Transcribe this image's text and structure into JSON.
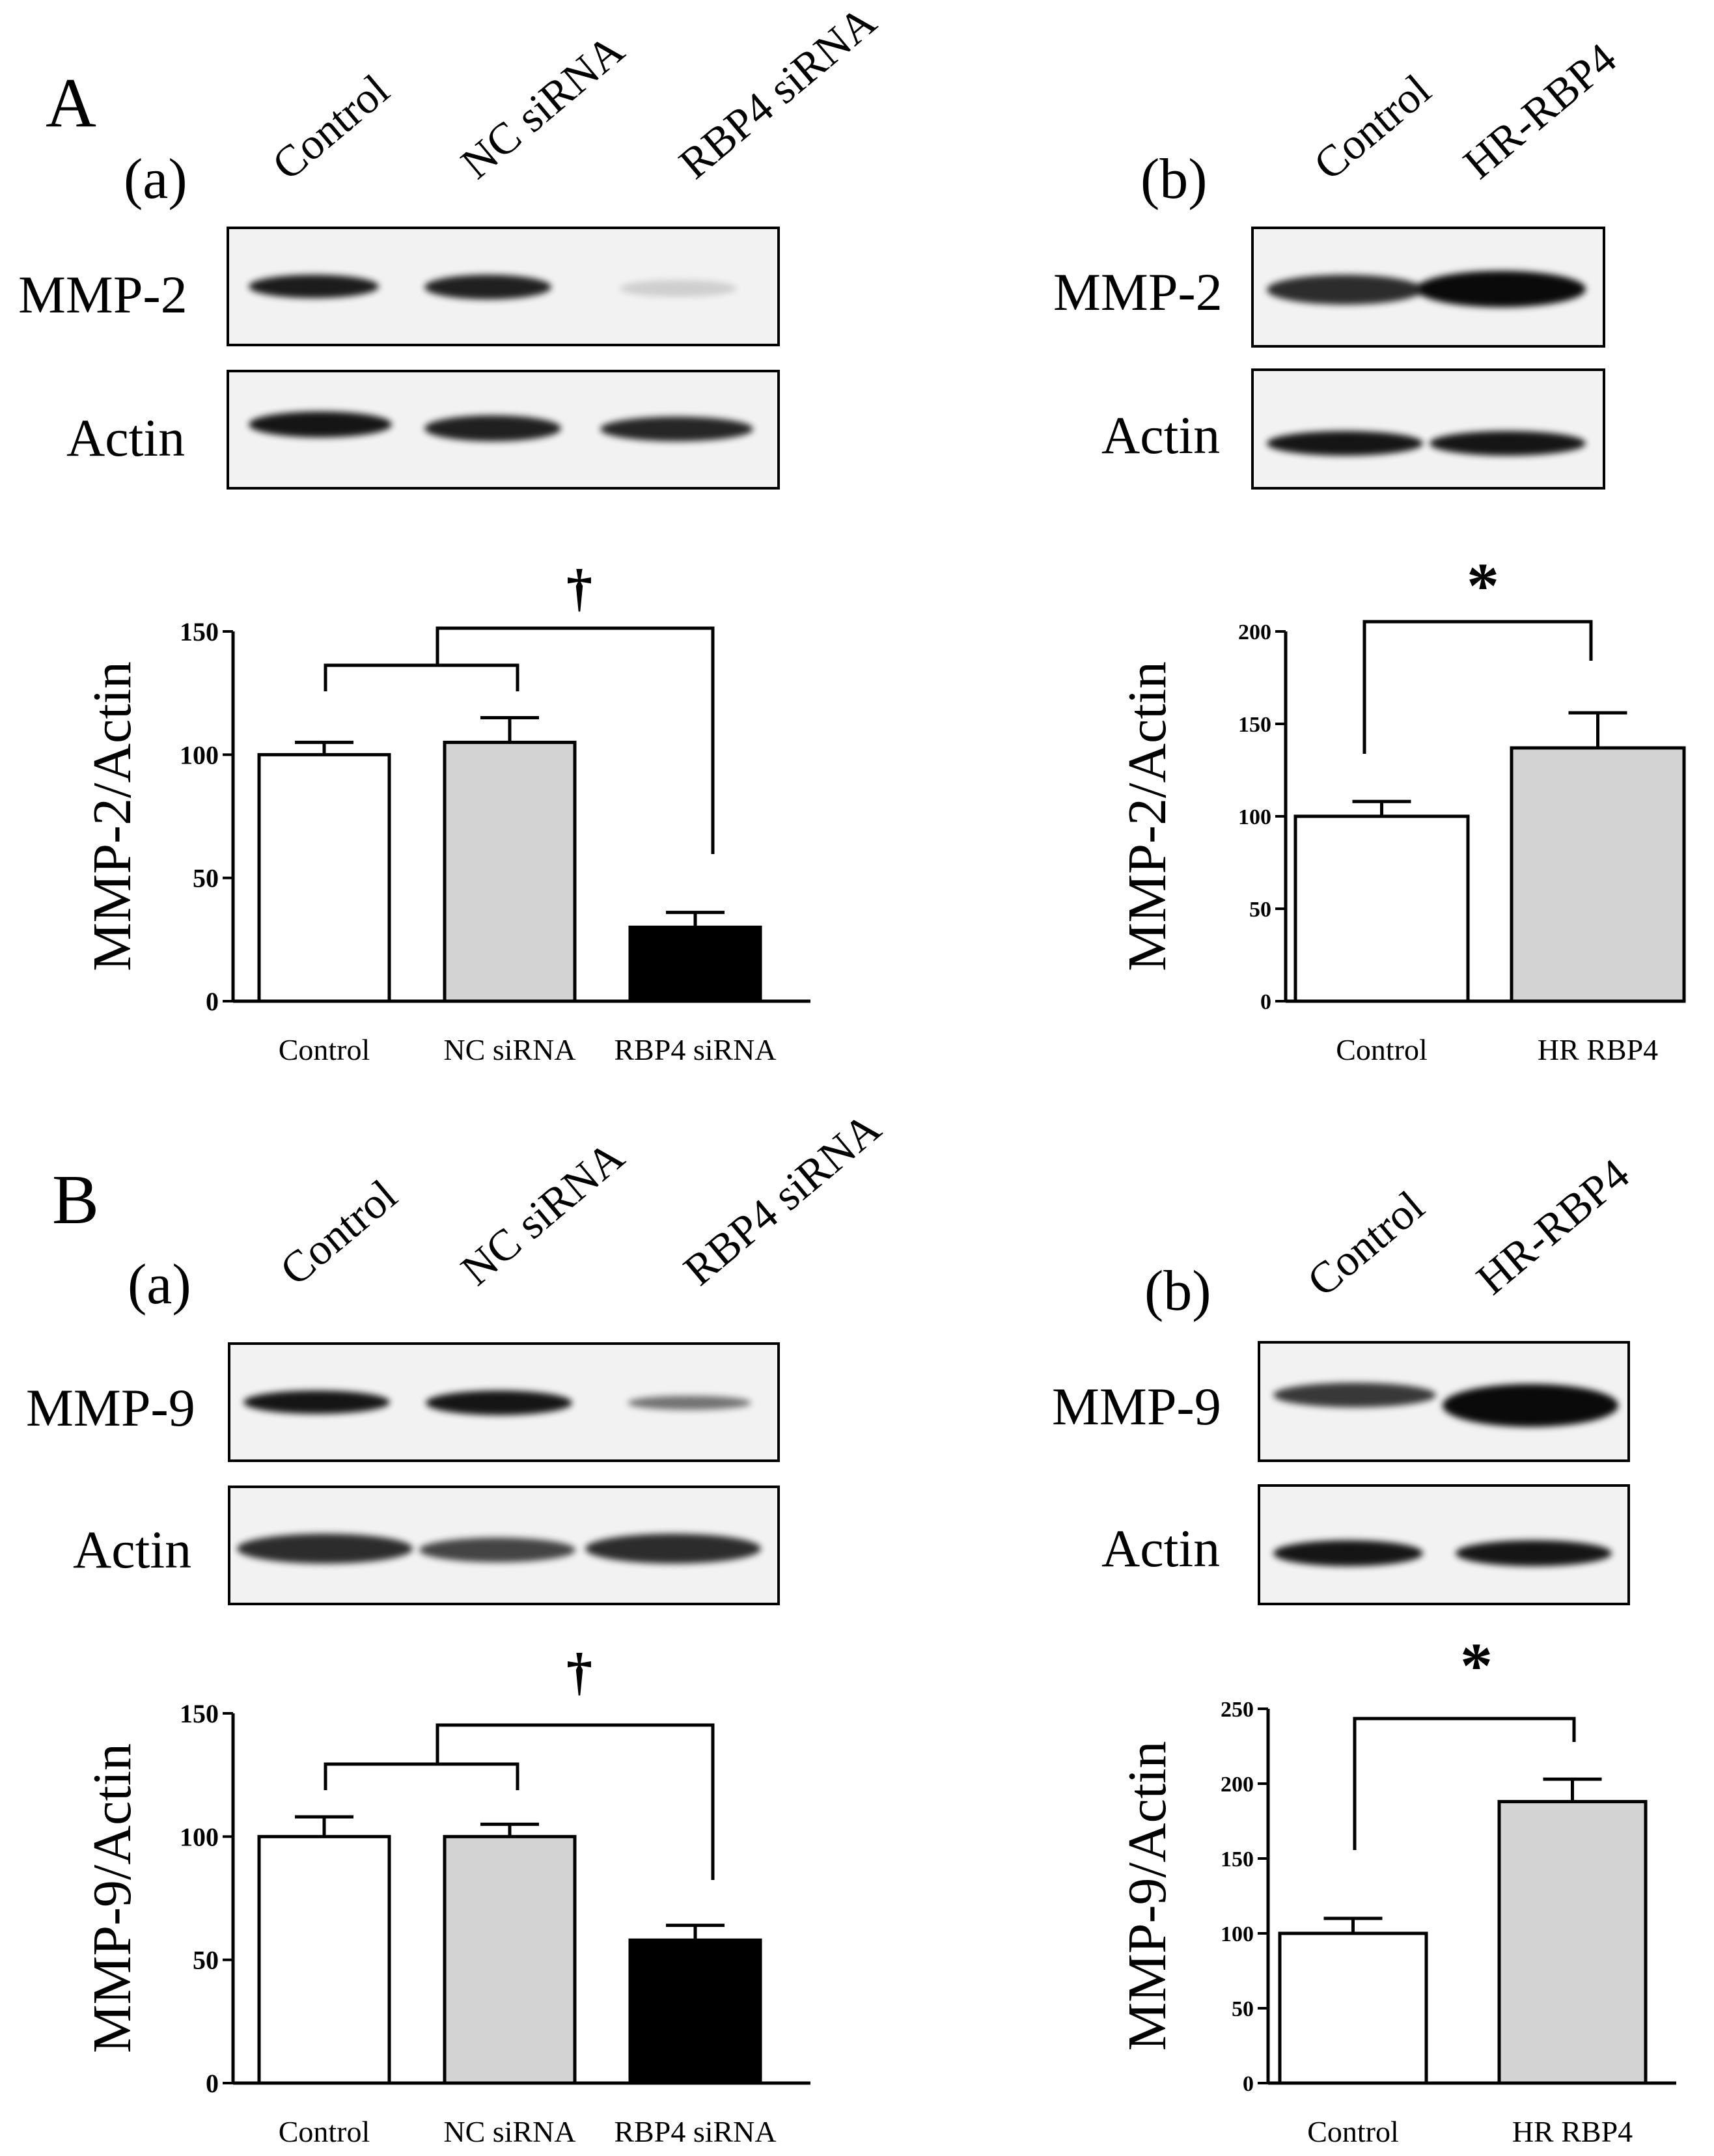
{
  "panels": [
    {
      "letter": "A",
      "sub_panels": [
        {
          "sub_label": "(a)",
          "lanes": [
            "Control",
            "NC siRNA",
            "RBP4 siRNA"
          ],
          "blot_rows": [
            {
              "label": "MMP-2",
              "band_intensity": [
                0.92,
                0.9,
                0.15
              ]
            },
            {
              "label": "Actin",
              "band_intensity": [
                0.95,
                0.9,
                0.88
              ]
            }
          ],
          "significance": "†"
        },
        {
          "sub_label": "(b)",
          "lanes": [
            "Control",
            "HR-RBP4"
          ],
          "blot_rows": [
            {
              "label": "MMP-2",
              "band_intensity": [
                0.85,
                1.0
              ]
            },
            {
              "label": "Actin",
              "band_intensity": [
                0.95,
                0.95
              ]
            }
          ],
          "significance": "*"
        }
      ]
    },
    {
      "letter": "B",
      "sub_panels": [
        {
          "sub_label": "(a)",
          "lanes": [
            "Control",
            "NC siRNA",
            "RBP4 siRNA"
          ],
          "blot_rows": [
            {
              "label": "MMP-9",
              "band_intensity": [
                0.95,
                0.95,
                0.55
              ]
            },
            {
              "label": "Actin",
              "band_intensity": [
                0.85,
                0.75,
                0.85
              ]
            }
          ],
          "significance": "†"
        },
        {
          "sub_label": "(b)",
          "lanes": [
            "Control",
            "HR-RBP4"
          ],
          "blot_rows": [
            {
              "label": "MMP-9",
              "band_intensity": [
                0.8,
                1.0
              ]
            },
            {
              "label": "Actin",
              "band_intensity": [
                0.95,
                0.95
              ]
            }
          ],
          "significance": "*"
        }
      ]
    }
  ],
  "chart_data": [
    {
      "type": "bar",
      "panel": "A(a)",
      "categories": [
        "Control",
        "NC siRNA",
        "RBP4 siRNA"
      ],
      "values": [
        100,
        105,
        30
      ],
      "errors": [
        5,
        10,
        6
      ],
      "bar_colors": [
        "#ffffff",
        "#d3d3d3",
        "#000000"
      ],
      "ylabel": "MMP-2/Actin",
      "ylim": [
        0,
        150
      ],
      "yticks": [
        0,
        50,
        100,
        150
      ],
      "significance": "†"
    },
    {
      "type": "bar",
      "panel": "A(b)",
      "categories": [
        "Control",
        "HR RBP4"
      ],
      "values": [
        100,
        137
      ],
      "errors": [
        8,
        19
      ],
      "bar_colors": [
        "#ffffff",
        "#d3d3d3"
      ],
      "ylabel": "MMP-2/Actin",
      "ylim": [
        0,
        200
      ],
      "yticks": [
        0,
        50,
        100,
        150,
        200
      ],
      "significance": "*"
    },
    {
      "type": "bar",
      "panel": "B(a)",
      "categories": [
        "Control",
        "NC siRNA",
        "RBP4 siRNA"
      ],
      "values": [
        100,
        100,
        58
      ],
      "errors": [
        8,
        5,
        6
      ],
      "bar_colors": [
        "#ffffff",
        "#d3d3d3",
        "#000000"
      ],
      "ylabel": "MMP-9/Actin",
      "ylim": [
        0,
        150
      ],
      "yticks": [
        0,
        50,
        100,
        150
      ],
      "significance": "†"
    },
    {
      "type": "bar",
      "panel": "B(b)",
      "categories": [
        "Control",
        "HR RBP4"
      ],
      "values": [
        100,
        188
      ],
      "errors": [
        10,
        15
      ],
      "bar_colors": [
        "#ffffff",
        "#d3d3d3"
      ],
      "ylabel": "MMP-9/Actin",
      "ylim": [
        0,
        250
      ],
      "yticks": [
        0,
        50,
        100,
        150,
        200,
        250
      ],
      "significance": "*"
    }
  ]
}
